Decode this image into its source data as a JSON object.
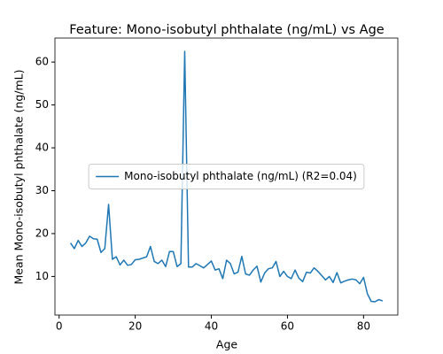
{
  "chart_data": {
    "type": "line",
    "title": "Feature: Mono-isobutyl phthalate (ng/mL) vs Age",
    "xlabel": "Age",
    "ylabel": "Mean Mono-isobutyl phthalate (ng/mL)",
    "x": [
      3,
      4,
      5,
      6,
      7,
      8,
      9,
      10,
      11,
      12,
      13,
      14,
      15,
      16,
      17,
      18,
      19,
      20,
      21,
      22,
      23,
      24,
      25,
      26,
      27,
      28,
      29,
      30,
      31,
      32,
      33,
      34,
      35,
      36,
      37,
      38,
      39,
      40,
      41,
      42,
      43,
      44,
      45,
      46,
      47,
      48,
      49,
      50,
      51,
      52,
      53,
      54,
      55,
      56,
      57,
      58,
      59,
      60,
      61,
      62,
      63,
      64,
      65,
      66,
      67,
      68,
      69,
      70,
      71,
      72,
      73,
      74,
      75,
      76,
      77,
      78,
      79,
      80,
      81,
      82,
      83,
      84,
      85
    ],
    "series": [
      {
        "name": "Mono-isobutyl phthalate (ng/mL) (R2=0.04)",
        "color": "#1f77b4",
        "values": [
          17.8,
          16.5,
          18.4,
          17.0,
          17.8,
          19.4,
          18.8,
          18.7,
          15.6,
          16.5,
          26.8,
          14.0,
          14.6,
          12.7,
          13.8,
          12.6,
          12.8,
          13.9,
          14.0,
          14.3,
          14.6,
          17.0,
          13.5,
          13.0,
          13.8,
          12.3,
          15.8,
          15.8,
          12.3,
          13.0,
          62.5,
          12.2,
          12.2,
          13.0,
          12.5,
          12.0,
          12.8,
          13.6,
          11.5,
          11.8,
          9.5,
          13.8,
          13.0,
          10.6,
          11.0,
          14.7,
          10.6,
          10.3,
          11.5,
          12.4,
          8.7,
          10.8,
          11.8,
          12.0,
          13.5,
          10.0,
          11.2,
          10.0,
          9.5,
          11.5,
          9.6,
          8.8,
          11.0,
          10.8,
          12.0,
          11.2,
          10.2,
          9.2,
          10.0,
          8.6,
          10.9,
          8.5,
          8.9,
          9.2,
          9.4,
          9.2,
          8.3,
          9.8,
          6.0,
          4.2,
          4.1,
          4.6,
          4.3
        ]
      }
    ],
    "xlim": [
      -1.1,
      89.0
    ],
    "xticks": [
      0,
      20,
      40,
      60,
      80
    ],
    "ylim": [
      1.0,
      65.6
    ],
    "yticks": [
      10,
      20,
      30,
      40,
      50,
      60
    ],
    "grid": false,
    "legend_loc": "center"
  }
}
